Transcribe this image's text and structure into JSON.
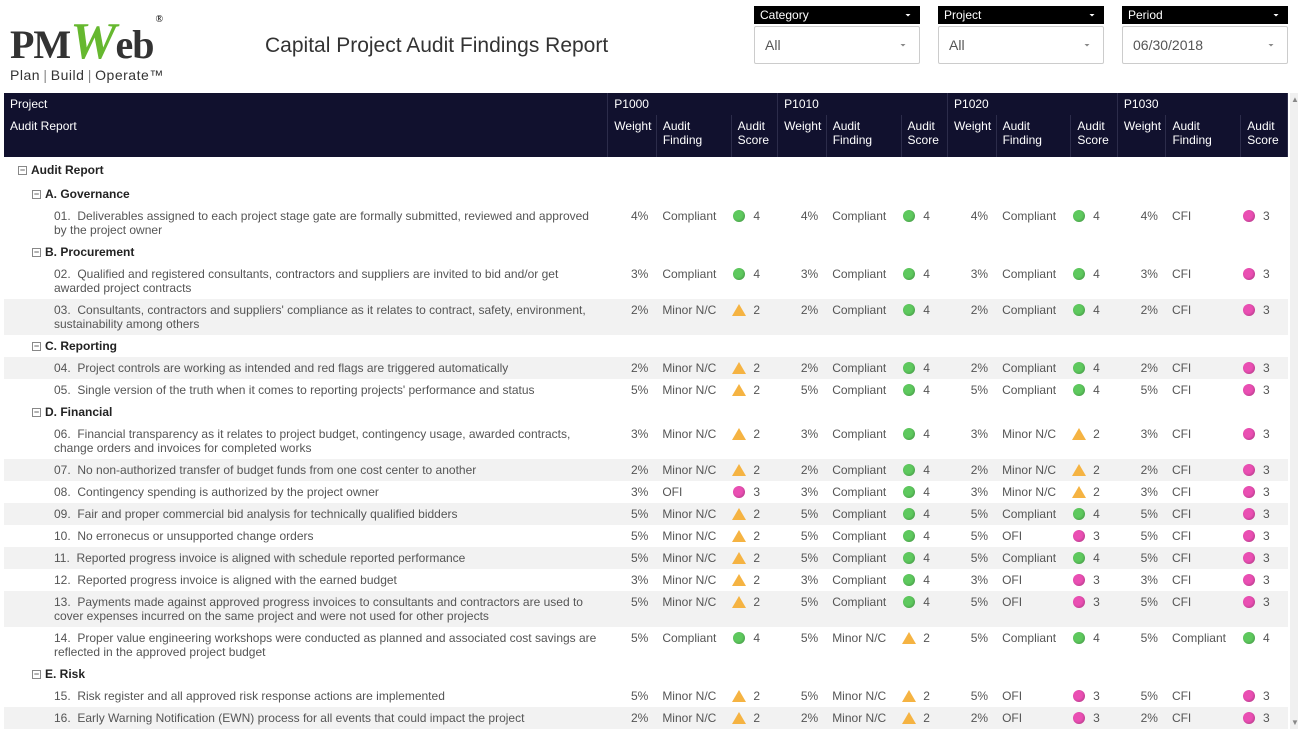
{
  "logo": {
    "brand": "PMWeb",
    "tagline": "Plan | Build | Operate™",
    "reg": "®"
  },
  "title": "Capital Project Audit Findings Report",
  "filters": [
    {
      "label": "Category",
      "value": "All"
    },
    {
      "label": "Project",
      "value": "All"
    },
    {
      "label": "Period",
      "value": "06/30/2018"
    }
  ],
  "table": {
    "columns": {
      "main_label": "Project",
      "sub_label": "Audit Report",
      "projects": [
        "P1000",
        "P1010",
        "P1020",
        "P1030"
      ],
      "sub_headers": {
        "weight": "Weight",
        "finding": "Audit Finding",
        "score": "Audit Score"
      }
    },
    "indicator_map": {
      "Compliant": {
        "shape": "circle",
        "color": "green"
      },
      "Minor N/C": {
        "shape": "triangle",
        "color": "amber"
      },
      "OFI": {
        "shape": "circle",
        "color": "pink"
      },
      "CFI": {
        "shape": "circle",
        "color": "pink"
      }
    },
    "colors": {
      "header_bg": "#11112e",
      "header_border": "#2c2c4a",
      "row_alt_bg": "#f2f2f2",
      "green": "#5ec95e",
      "pink": "#ea4fb3",
      "amber": "#f5b342"
    },
    "rows": [
      {
        "type": "group0",
        "label": "Audit Report"
      },
      {
        "type": "group1",
        "label": "A. Governance"
      },
      {
        "type": "item",
        "alt": false,
        "num": "01.",
        "text": "Deliverables assigned to each project stage gate are formally submitted, reviewed and approved by the project owner",
        "cells": [
          {
            "weight": "4%",
            "finding": "Compliant",
            "score": 4
          },
          {
            "weight": "4%",
            "finding": "Compliant",
            "score": 4
          },
          {
            "weight": "4%",
            "finding": "Compliant",
            "score": 4
          },
          {
            "weight": "4%",
            "finding": "CFI",
            "score": 3
          }
        ]
      },
      {
        "type": "group1",
        "label": "B. Procurement"
      },
      {
        "type": "item",
        "alt": false,
        "num": "02.",
        "text": "Qualified and registered consultants, contractors and suppliers are invited to bid and/or get awarded project contracts",
        "cells": [
          {
            "weight": "3%",
            "finding": "Compliant",
            "score": 4
          },
          {
            "weight": "3%",
            "finding": "Compliant",
            "score": 4
          },
          {
            "weight": "3%",
            "finding": "Compliant",
            "score": 4
          },
          {
            "weight": "3%",
            "finding": "CFI",
            "score": 3
          }
        ]
      },
      {
        "type": "item",
        "alt": true,
        "num": "03.",
        "text": "Consultants, contractors and suppliers' compliance as it relates to contract, safety, environment, sustainability among others",
        "cells": [
          {
            "weight": "2%",
            "finding": "Minor N/C",
            "score": 2
          },
          {
            "weight": "2%",
            "finding": "Compliant",
            "score": 4
          },
          {
            "weight": "2%",
            "finding": "Compliant",
            "score": 4
          },
          {
            "weight": "2%",
            "finding": "CFI",
            "score": 3
          }
        ]
      },
      {
        "type": "group1",
        "label": "C. Reporting"
      },
      {
        "type": "item",
        "alt": true,
        "num": "04.",
        "text": "Project controls are working as intended and red flags are triggered automatically",
        "cells": [
          {
            "weight": "2%",
            "finding": "Minor N/C",
            "score": 2
          },
          {
            "weight": "2%",
            "finding": "Compliant",
            "score": 4
          },
          {
            "weight": "2%",
            "finding": "Compliant",
            "score": 4
          },
          {
            "weight": "2%",
            "finding": "CFI",
            "score": 3
          }
        ]
      },
      {
        "type": "item",
        "alt": false,
        "num": "05.",
        "text": "Single version of the truth when it comes to reporting projects' performance and status",
        "cells": [
          {
            "weight": "5%",
            "finding": "Minor N/C",
            "score": 2
          },
          {
            "weight": "5%",
            "finding": "Compliant",
            "score": 4
          },
          {
            "weight": "5%",
            "finding": "Compliant",
            "score": 4
          },
          {
            "weight": "5%",
            "finding": "CFI",
            "score": 3
          }
        ]
      },
      {
        "type": "group1",
        "label": "D. Financial"
      },
      {
        "type": "item",
        "alt": false,
        "num": "06.",
        "text": "Financial transparency as it relates to project budget, contingency usage, awarded contracts, change orders and invoices for completed works",
        "cells": [
          {
            "weight": "3%",
            "finding": "Minor N/C",
            "score": 2
          },
          {
            "weight": "3%",
            "finding": "Compliant",
            "score": 4
          },
          {
            "weight": "3%",
            "finding": "Minor N/C",
            "score": 2
          },
          {
            "weight": "3%",
            "finding": "CFI",
            "score": 3
          }
        ]
      },
      {
        "type": "item",
        "alt": true,
        "num": "07.",
        "text": "No non-authorized transfer of budget funds from one cost center to another",
        "cells": [
          {
            "weight": "2%",
            "finding": "Minor N/C",
            "score": 2
          },
          {
            "weight": "2%",
            "finding": "Compliant",
            "score": 4
          },
          {
            "weight": "2%",
            "finding": "Minor N/C",
            "score": 2
          },
          {
            "weight": "2%",
            "finding": "CFI",
            "score": 3
          }
        ]
      },
      {
        "type": "item",
        "alt": false,
        "num": "08.",
        "text": "Contingency spending is authorized by the project owner",
        "cells": [
          {
            "weight": "3%",
            "finding": "OFI",
            "score": 3
          },
          {
            "weight": "3%",
            "finding": "Compliant",
            "score": 4
          },
          {
            "weight": "3%",
            "finding": "Minor N/C",
            "score": 2
          },
          {
            "weight": "3%",
            "finding": "CFI",
            "score": 3
          }
        ]
      },
      {
        "type": "item",
        "alt": true,
        "num": "09.",
        "text": "Fair and proper commercial bid analysis for technically qualified bidders",
        "cells": [
          {
            "weight": "5%",
            "finding": "Minor N/C",
            "score": 2
          },
          {
            "weight": "5%",
            "finding": "Compliant",
            "score": 4
          },
          {
            "weight": "5%",
            "finding": "Compliant",
            "score": 4
          },
          {
            "weight": "5%",
            "finding": "CFI",
            "score": 3
          }
        ]
      },
      {
        "type": "item",
        "alt": false,
        "num": "10.",
        "text": "No erronecus or unsupported change orders",
        "cells": [
          {
            "weight": "5%",
            "finding": "Minor N/C",
            "score": 2
          },
          {
            "weight": "5%",
            "finding": "Compliant",
            "score": 4
          },
          {
            "weight": "5%",
            "finding": "OFI",
            "score": 3
          },
          {
            "weight": "5%",
            "finding": "CFI",
            "score": 3
          }
        ]
      },
      {
        "type": "item",
        "alt": true,
        "num": "11.",
        "text": "Reported progress invoice is aligned with schedule reported performance",
        "cells": [
          {
            "weight": "5%",
            "finding": "Minor N/C",
            "score": 2
          },
          {
            "weight": "5%",
            "finding": "Compliant",
            "score": 4
          },
          {
            "weight": "5%",
            "finding": "Compliant",
            "score": 4
          },
          {
            "weight": "5%",
            "finding": "CFI",
            "score": 3
          }
        ]
      },
      {
        "type": "item",
        "alt": false,
        "num": "12.",
        "text": "Reported progress invoice is aligned with the earned budget",
        "cells": [
          {
            "weight": "3%",
            "finding": "Minor N/C",
            "score": 2
          },
          {
            "weight": "3%",
            "finding": "Compliant",
            "score": 4
          },
          {
            "weight": "3%",
            "finding": "OFI",
            "score": 3
          },
          {
            "weight": "3%",
            "finding": "CFI",
            "score": 3
          }
        ]
      },
      {
        "type": "item",
        "alt": true,
        "num": "13.",
        "text": "Payments made against approved progress invoices to consultants and contractors are used to cover expenses incurred on the same project and were not used for other projects",
        "cells": [
          {
            "weight": "5%",
            "finding": "Minor N/C",
            "score": 2
          },
          {
            "weight": "5%",
            "finding": "Compliant",
            "score": 4
          },
          {
            "weight": "5%",
            "finding": "OFI",
            "score": 3
          },
          {
            "weight": "5%",
            "finding": "CFI",
            "score": 3
          }
        ]
      },
      {
        "type": "item",
        "alt": false,
        "num": "14.",
        "text": "Proper value engineering workshops were conducted as planned and associated cost savings are reflected in the approved project budget",
        "cells": [
          {
            "weight": "5%",
            "finding": "Compliant",
            "score": 4
          },
          {
            "weight": "5%",
            "finding": "Minor N/C",
            "score": 2
          },
          {
            "weight": "5%",
            "finding": "Compliant",
            "score": 4
          },
          {
            "weight": "5%",
            "finding": "Compliant",
            "score": 4
          }
        ]
      },
      {
        "type": "group1",
        "label": "E. Risk"
      },
      {
        "type": "item",
        "alt": false,
        "num": "15.",
        "text": "Risk register and all approved risk response actions are implemented",
        "cells": [
          {
            "weight": "5%",
            "finding": "Minor N/C",
            "score": 2
          },
          {
            "weight": "5%",
            "finding": "Minor N/C",
            "score": 2
          },
          {
            "weight": "5%",
            "finding": "OFI",
            "score": 3
          },
          {
            "weight": "5%",
            "finding": "CFI",
            "score": 3
          }
        ]
      },
      {
        "type": "item",
        "alt": true,
        "num": "16.",
        "text": "Early Warning Notification (EWN) process for all events that could impact the project",
        "cells": [
          {
            "weight": "2%",
            "finding": "Minor N/C",
            "score": 2
          },
          {
            "weight": "2%",
            "finding": "Minor N/C",
            "score": 2
          },
          {
            "weight": "2%",
            "finding": "OFI",
            "score": 3
          },
          {
            "weight": "2%",
            "finding": "CFI",
            "score": 3
          }
        ]
      }
    ]
  }
}
